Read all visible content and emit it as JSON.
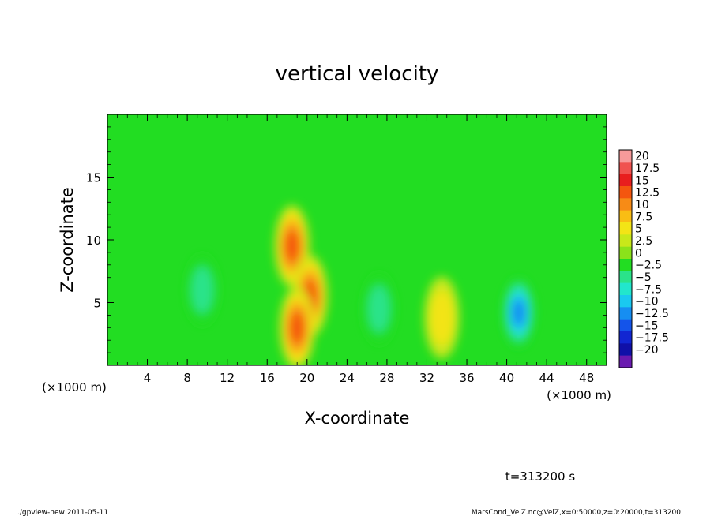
{
  "chart_data": {
    "type": "heatmap",
    "title": "vertical velocity",
    "xlabel": "X-coordinate",
    "ylabel": "Z-coordinate",
    "x_unit_left": "(×1000 m)",
    "x_unit_right": "(×1000 m)",
    "xlim": [
      0,
      50
    ],
    "ylim": [
      0,
      20
    ],
    "x_ticks": [
      4,
      8,
      12,
      16,
      20,
      24,
      28,
      32,
      36,
      40,
      44,
      48
    ],
    "y_ticks": [
      5,
      10,
      15
    ],
    "colorbar": {
      "labels": [
        "20",
        "17.5",
        "15",
        "12.5",
        "10",
        "7.5",
        "5",
        "2.5",
        "0",
        "−2.5",
        "−5",
        "−7.5",
        "−10",
        "−12.5",
        "−15",
        "−17.5",
        "−20"
      ],
      "colors": [
        "#f79a9a",
        "#f0524f",
        "#e81e1e",
        "#f4560f",
        "#f78b16",
        "#f9bd14",
        "#f3e416",
        "#c8e81a",
        "#8be21a",
        "#22dd22",
        "#2ae38a",
        "#22e6cc",
        "#1ac9f0",
        "#168ef2",
        "#1454ea",
        "#1226d2",
        "#1010a8",
        "#6a1ab0"
      ]
    },
    "features": [
      {
        "kind": "updraft",
        "x": 18.5,
        "z": 9.5,
        "peak": 12
      },
      {
        "kind": "updraft",
        "x": 20.3,
        "z": 5.5,
        "peak": 12
      },
      {
        "kind": "updraft",
        "x": 19.0,
        "z": 3.0,
        "peak": 12
      },
      {
        "kind": "updraft",
        "x": 33.5,
        "z": 3.8,
        "peak": 6
      },
      {
        "kind": "downdraft",
        "x": 41.2,
        "z": 4.2,
        "peak": -13
      },
      {
        "kind": "downdraft",
        "x": 27.2,
        "z": 4.5,
        "peak": -6
      },
      {
        "kind": "downdraft",
        "x": 9.5,
        "z": 6.0,
        "peak": -4
      }
    ],
    "time_label": "t=313200 s"
  },
  "footer": {
    "left": "./gpview-new  2011-05-11",
    "right": "MarsCond_VelZ.nc@VelZ,x=0:50000,z=0:20000,t=313200"
  }
}
